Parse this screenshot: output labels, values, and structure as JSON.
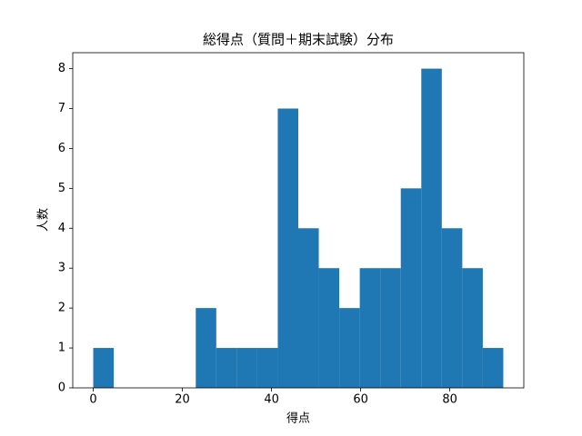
{
  "chart_data": {
    "type": "histogram",
    "title": "総得点（質問＋期末試験）分布",
    "x_label": "得点",
    "y_label": "人数",
    "bins": [
      0,
      4.6,
      9.2,
      13.8,
      18.4,
      23,
      27.6,
      32.2,
      36.8,
      41.4,
      46,
      50.6,
      55.2,
      59.8,
      64.4,
      69,
      73.6,
      78.2,
      82.8,
      87.4,
      92
    ],
    "values": [
      1,
      0,
      0,
      0,
      0,
      2,
      1,
      1,
      1,
      7,
      4,
      3,
      2,
      3,
      3,
      5,
      8,
      4,
      3,
      1
    ],
    "color": "#1f77b4",
    "xlim": [
      -4.6,
      96.6
    ],
    "xticks": [
      0,
      20,
      40,
      60,
      80
    ],
    "ylim": [
      0,
      8.4
    ],
    "yticks": [
      0,
      1,
      2,
      3,
      4,
      5,
      6,
      7,
      8
    ],
    "grid": false
  }
}
